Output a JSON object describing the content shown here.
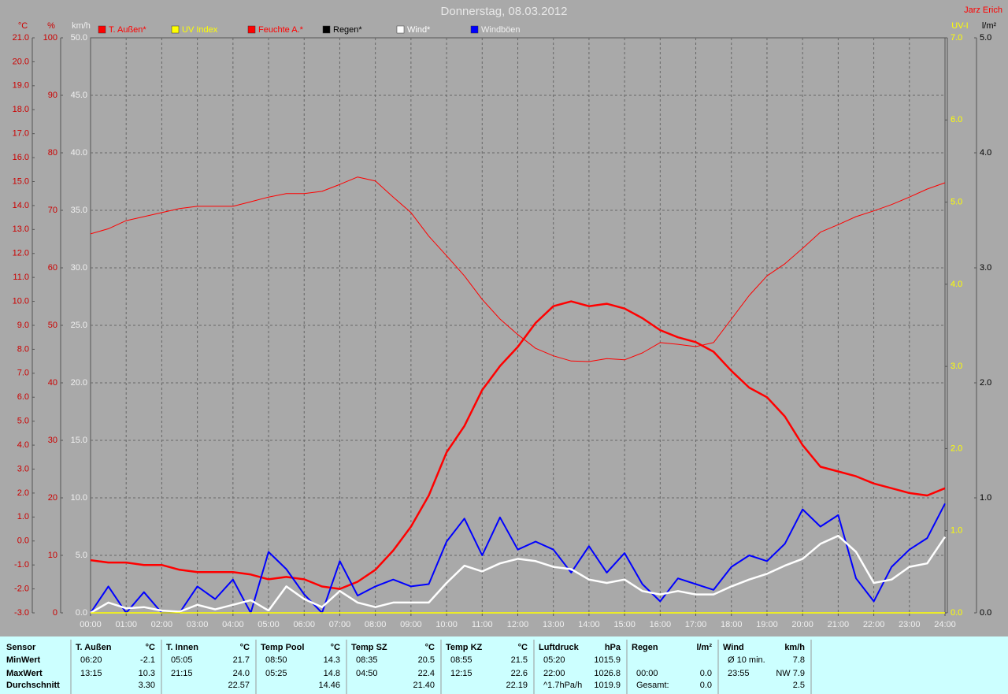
{
  "chart_data": {
    "type": "line",
    "title": "Donnerstag, 08.03.2012",
    "author": "Jarz Erich",
    "x": [
      0,
      0.5,
      1,
      1.5,
      2,
      2.5,
      3,
      3.5,
      4,
      4.5,
      5,
      5.5,
      6,
      6.5,
      7,
      7.5,
      8,
      8.5,
      9,
      9.5,
      10,
      10.5,
      11,
      11.5,
      12,
      12.5,
      13,
      13.5,
      14,
      14.5,
      15,
      15.5,
      16,
      16.5,
      17,
      17.5,
      18,
      18.5,
      19,
      19.5,
      20,
      20.5,
      21,
      21.5,
      22,
      22.5,
      23,
      23.5,
      24
    ],
    "xlim": [
      0,
      24
    ],
    "xticks": [
      {
        "value": 0,
        "label": "00:00"
      },
      {
        "value": 1,
        "label": "01:00"
      },
      {
        "value": 2,
        "label": "02:00"
      },
      {
        "value": 3,
        "label": "03:00"
      },
      {
        "value": 4,
        "label": "04:00"
      },
      {
        "value": 5,
        "label": "05:00"
      },
      {
        "value": 6,
        "label": "06:00"
      },
      {
        "value": 7,
        "label": "07:00"
      },
      {
        "value": 8,
        "label": "08:00"
      },
      {
        "value": 9,
        "label": "09:00"
      },
      {
        "value": 10,
        "label": "10:00"
      },
      {
        "value": 11,
        "label": "11:00"
      },
      {
        "value": 12,
        "label": "12:00"
      },
      {
        "value": 13,
        "label": "13:00"
      },
      {
        "value": 14,
        "label": "14:00"
      },
      {
        "value": 15,
        "label": "15:00"
      },
      {
        "value": 16,
        "label": "16:00"
      },
      {
        "value": 17,
        "label": "17:00"
      },
      {
        "value": 18,
        "label": "18:00"
      },
      {
        "value": 19,
        "label": "19:00"
      },
      {
        "value": 20,
        "label": "20:00"
      },
      {
        "value": 21,
        "label": "21:00"
      },
      {
        "value": 22,
        "label": "22:00"
      },
      {
        "value": 23,
        "label": "23:00"
      },
      {
        "value": 24,
        "label": "24:00"
      }
    ],
    "grid": true,
    "axes": [
      {
        "id": "c",
        "label": "°C",
        "color": "#cc0000",
        "side": "left",
        "lim": [
          -3,
          21
        ],
        "ticks": [
          {
            "value": -3,
            "label": "-3.0"
          },
          {
            "value": -2,
            "label": "-2.0"
          },
          {
            "value": -1,
            "label": "-1.0"
          },
          {
            "value": 0,
            "label": "0.0"
          },
          {
            "value": 1,
            "label": "1.0"
          },
          {
            "value": 2,
            "label": "2.0"
          },
          {
            "value": 3,
            "label": "3.0"
          },
          {
            "value": 4,
            "label": "4.0"
          },
          {
            "value": 5,
            "label": "5.0"
          },
          {
            "value": 6,
            "label": "6.0"
          },
          {
            "value": 7,
            "label": "7.0"
          },
          {
            "value": 8,
            "label": "8.0"
          },
          {
            "value": 9,
            "label": "9.0"
          },
          {
            "value": 10,
            "label": "10.0"
          },
          {
            "value": 11,
            "label": "11.0"
          },
          {
            "value": 12,
            "label": "12.0"
          },
          {
            "value": 13,
            "label": "13.0"
          },
          {
            "value": 14,
            "label": "14.0"
          },
          {
            "value": 15,
            "label": "15.0"
          },
          {
            "value": 16,
            "label": "16.0"
          },
          {
            "value": 17,
            "label": "17.0"
          },
          {
            "value": 18,
            "label": "18.0"
          },
          {
            "value": 19,
            "label": "19.0"
          },
          {
            "value": 20,
            "label": "20.0"
          },
          {
            "value": 21,
            "label": "21.0"
          }
        ]
      },
      {
        "id": "pct",
        "label": "%",
        "color": "#cc0000",
        "side": "left",
        "lim": [
          0,
          100
        ],
        "ticks": [
          0,
          10,
          20,
          30,
          40,
          50,
          60,
          70,
          80,
          90,
          100
        ]
      },
      {
        "id": "kmh",
        "label": "km/h",
        "color": "#f0f0f0",
        "side": "left",
        "lim": [
          0,
          50
        ],
        "grid": true,
        "ticks": [
          {
            "value": 0,
            "label": "0.0"
          },
          {
            "value": 5,
            "label": "5.0"
          },
          {
            "value": 10,
            "label": "10.0"
          },
          {
            "value": 15,
            "label": "15.0"
          },
          {
            "value": 20,
            "label": "20.0"
          },
          {
            "value": 25,
            "label": "25.0"
          },
          {
            "value": 30,
            "label": "30.0"
          },
          {
            "value": 35,
            "label": "35.0"
          },
          {
            "value": 40,
            "label": "40.0"
          },
          {
            "value": 45,
            "label": "45.0"
          },
          {
            "value": 50,
            "label": "50.0"
          }
        ]
      },
      {
        "id": "uv",
        "label": "UV-I",
        "color": "#ffff00",
        "side": "right",
        "lim": [
          0,
          7
        ],
        "ticks": [
          {
            "value": 0,
            "label": "0.0"
          },
          {
            "value": 1,
            "label": "1.0"
          },
          {
            "value": 2,
            "label": "2.0"
          },
          {
            "value": 3,
            "label": "3.0"
          },
          {
            "value": 4,
            "label": "4.0"
          },
          {
            "value": 5,
            "label": "5.0"
          },
          {
            "value": 6,
            "label": "6.0"
          },
          {
            "value": 7,
            "label": "7.0"
          }
        ]
      },
      {
        "id": "lm2",
        "label": "l/m²",
        "color": "#000000",
        "side": "right",
        "lim": [
          0,
          5
        ],
        "ticks": [
          {
            "value": 0,
            "label": "0.0"
          },
          {
            "value": 1,
            "label": "1.0"
          },
          {
            "value": 2,
            "label": "2.0"
          },
          {
            "value": 3,
            "label": "3.0"
          },
          {
            "value": 4,
            "label": "4.0"
          },
          {
            "value": 5,
            "label": "5.0"
          }
        ]
      }
    ],
    "series": [
      {
        "name": "T. Außen*",
        "color": "#ff0000",
        "axis": "c",
        "width": 2.5,
        "values": [
          -0.8,
          -0.9,
          -0.9,
          -1.0,
          -1.0,
          -1.2,
          -1.3,
          -1.3,
          -1.3,
          -1.4,
          -1.6,
          -1.5,
          -1.6,
          -1.9,
          -2.0,
          -1.7,
          -1.2,
          -0.4,
          0.6,
          1.9,
          3.7,
          4.8,
          6.3,
          7.3,
          8.1,
          9.1,
          9.8,
          10.0,
          9.8,
          9.9,
          9.7,
          9.3,
          8.8,
          8.5,
          8.3,
          7.9,
          7.1,
          6.4,
          6.0,
          5.2,
          4.0,
          3.1,
          2.9,
          2.7,
          2.4,
          2.2,
          2.0,
          1.9,
          2.2
        ]
      },
      {
        "name": "UV Index",
        "color": "#ffff00",
        "axis": "uv",
        "width": 1.5,
        "values": [
          0,
          0,
          0,
          0,
          0,
          0,
          0,
          0,
          0,
          0,
          0,
          0,
          0,
          0,
          0,
          0,
          0,
          0,
          0,
          0,
          0,
          0,
          0,
          0,
          0,
          0,
          0,
          0,
          0,
          0,
          0,
          0,
          0,
          0,
          0,
          0,
          0,
          0,
          0,
          0,
          0,
          0,
          0,
          0,
          0,
          0,
          0,
          0,
          0
        ]
      },
      {
        "name": "Feuchte A.*",
        "color": "#ff0000",
        "axis": "pct",
        "width": 1,
        "values": [
          65.9,
          66.8,
          68.2,
          68.9,
          69.6,
          70.3,
          70.7,
          70.7,
          70.7,
          71.5,
          72.3,
          72.9,
          72.9,
          73.3,
          74.5,
          75.8,
          75.1,
          72.3,
          69.6,
          65.5,
          62.1,
          58.6,
          54.5,
          51.1,
          48.4,
          46.0,
          44.7,
          43.8,
          43.7,
          44.2,
          44.0,
          45.2,
          47.0,
          46.7,
          46.3,
          47.0,
          51.1,
          55.2,
          58.6,
          60.7,
          63.4,
          66.2,
          67.5,
          68.9,
          69.9,
          71.0,
          72.3,
          73.7,
          74.8
        ]
      },
      {
        "name": "Regen*",
        "color": "#000000",
        "axis": "lm2",
        "width": 1,
        "values": [
          0,
          0,
          0,
          0,
          0,
          0,
          0,
          0,
          0,
          0,
          0,
          0,
          0,
          0,
          0,
          0,
          0,
          0,
          0,
          0,
          0,
          0,
          0,
          0,
          0,
          0,
          0,
          0,
          0,
          0,
          0,
          0,
          0,
          0,
          0,
          0,
          0,
          0,
          0,
          0,
          0,
          0,
          0,
          0,
          0,
          0,
          0,
          0,
          0
        ]
      },
      {
        "name": "Wind*",
        "color": "#ffffff",
        "axis": "kmh",
        "width": 2.5,
        "values": [
          0,
          0.9,
          0.4,
          0.5,
          0.2,
          0.1,
          0.7,
          0.3,
          0.7,
          1.1,
          0.2,
          2.3,
          1.2,
          0.5,
          1.9,
          0.9,
          0.5,
          0.9,
          0.9,
          0.9,
          2.6,
          4.1,
          3.6,
          4.3,
          4.7,
          4.5,
          4.0,
          3.8,
          2.9,
          2.6,
          2.9,
          1.9,
          1.6,
          1.9,
          1.6,
          1.6,
          2.3,
          2.9,
          3.4,
          4.1,
          4.7,
          6.0,
          6.7,
          5.3,
          2.6,
          2.9,
          4.0,
          4.3,
          6.6
        ]
      },
      {
        "name": "Windböen",
        "color": "#0000ff",
        "axis": "kmh",
        "width": 2,
        "values": [
          0,
          2.3,
          0,
          1.8,
          0,
          0,
          2.3,
          1.2,
          2.9,
          0,
          5.3,
          3.8,
          1.6,
          0,
          4.5,
          1.5,
          2.3,
          2.9,
          2.3,
          2.5,
          6.2,
          8.2,
          5.0,
          8.3,
          5.5,
          6.2,
          5.5,
          3.5,
          5.8,
          3.5,
          5.2,
          2.5,
          1.0,
          3.0,
          2.5,
          2.0,
          4.0,
          5.0,
          4.5,
          6.0,
          9.0,
          7.5,
          8.5,
          3.0,
          1.0,
          4.0,
          5.5,
          6.5,
          9.5
        ]
      }
    ]
  },
  "table": {
    "labels": [
      "Sensor",
      "MinWert",
      "MaxWert",
      "Durchschnitt"
    ],
    "columns": [
      {
        "name": "T. Außen",
        "unit": "°C",
        "min": [
          "06:20",
          "-2.1"
        ],
        "max": [
          "13:15",
          "10.3"
        ],
        "avg": [
          "3.30"
        ]
      },
      {
        "name": "T. Innen",
        "unit": "°C",
        "min": [
          "05:05",
          "21.7"
        ],
        "max": [
          "21:15",
          "24.0"
        ],
        "avg": [
          "22.57"
        ]
      },
      {
        "name": "Temp Pool",
        "unit": "°C",
        "min": [
          "08:50",
          "14.3"
        ],
        "max": [
          "05:25",
          "14.8"
        ],
        "avg": [
          "14.46"
        ]
      },
      {
        "name": "Temp SZ",
        "unit": "°C",
        "min": [
          "08:35",
          "20.5"
        ],
        "max": [
          "04:50",
          "22.4"
        ],
        "avg": [
          "21.40"
        ]
      },
      {
        "name": "Temp KZ",
        "unit": "°C",
        "min": [
          "08:55",
          "21.5"
        ],
        "max": [
          "12:15",
          "22.6"
        ],
        "avg": [
          "22.19"
        ]
      },
      {
        "name": "Luftdruck",
        "unit": "hPa",
        "min": [
          "05:20",
          "1015.9"
        ],
        "max": [
          "22:00",
          "1026.8"
        ],
        "avg": [
          "^1.7hPa/h",
          "1019.9"
        ]
      },
      {
        "name": "Regen",
        "unit": "l/m²",
        "max": [
          "00:00",
          "0.0"
        ],
        "avg": [
          "Gesamt:",
          "0.0"
        ]
      },
      {
        "name": "Wind",
        "unit": "km/h",
        "min": [
          "Ø 10 min.",
          "7.8"
        ],
        "max": [
          "23:55",
          "NW 7.9"
        ],
        "avg": [
          "2.5"
        ]
      }
    ]
  }
}
